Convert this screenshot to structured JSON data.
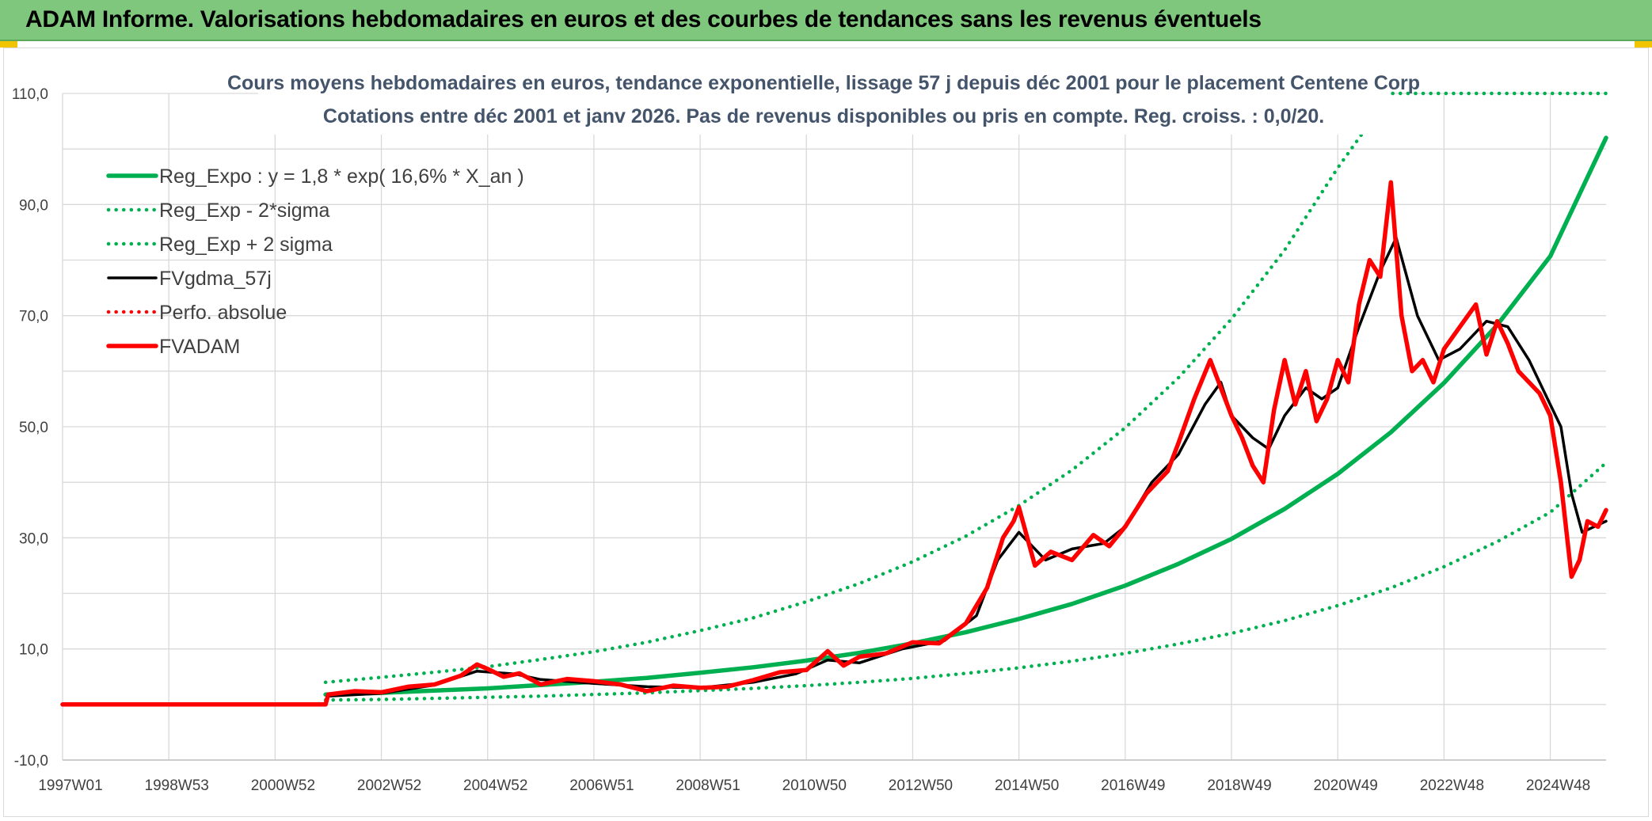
{
  "banner": {
    "title": "ADAM Informe. Valorisations hebdomadaires en euros et des courbes de tendances sans les revenus éventuels"
  },
  "colors": {
    "banner_bg": "#7fc77d",
    "green": "#00b050",
    "red": "#ff0000",
    "black": "#000000",
    "grid": "#d9d9d9"
  },
  "chart_data": {
    "type": "line",
    "title": "Cours moyens hebdomadaires en euros, tendance exponentielle, lissage 57 j depuis déc 2001 pour le placement Centene Corp",
    "subtitle": "Cotations entre déc 2001 et janv 2026. Pas de revenus disponibles ou pris en compte. Reg. croiss. : 0,0/20.",
    "xlabel": "",
    "ylabel": "",
    "x_range": [
      1997.0,
      2026.05
    ],
    "ylim": [
      -10,
      110
    ],
    "y_ticks": [
      -10,
      10,
      30,
      50,
      70,
      90,
      110
    ],
    "y_tick_labels": [
      "-10,0",
      "10,0",
      "30,0",
      "50,0",
      "70,0",
      "90,0",
      "110,0"
    ],
    "x_tick_positions": [
      1997.0,
      1999.0,
      2001.0,
      2003.0,
      2005.0,
      2007.0,
      2009.0,
      2011.0,
      2013.0,
      2015.0,
      2017.0,
      2019.0,
      2021.0,
      2023.0,
      2025.0
    ],
    "x_tick_labels": [
      "1997W01",
      "1998W53",
      "2000W52",
      "2002W52",
      "2004W52",
      "2006W51",
      "2008W51",
      "2010W50",
      "2012W50",
      "2014W50",
      "2016W49",
      "2018W49",
      "2020W49",
      "2022W48",
      "2024W48"
    ],
    "grid": true,
    "legend_position": "top-left",
    "series": [
      {
        "name": "Reg_Expo : y = 1,8 * exp( 16,6% *  X_an )",
        "style": "solid-thick",
        "color": "#00b050",
        "x": [
          2001.95,
          2003,
          2004,
          2005,
          2006,
          2007,
          2008,
          2009,
          2010,
          2011,
          2012,
          2013,
          2014,
          2015,
          2016,
          2017,
          2018,
          2019,
          2020,
          2021,
          2022,
          2023,
          2024,
          2025,
          2026.05
        ],
        "y": [
          1.8,
          2.1,
          2.5,
          2.9,
          3.5,
          4.1,
          4.8,
          5.7,
          6.7,
          7.9,
          9.3,
          11.0,
          13.0,
          15.4,
          18.1,
          21.4,
          25.3,
          29.8,
          35.2,
          41.5,
          49.0,
          57.9,
          68.3,
          80.7,
          102.0
        ]
      },
      {
        "name": "Reg_Exp - 2*sigma",
        "style": "dotted",
        "color": "#00b050",
        "x": [
          2001.95,
          2003,
          2004,
          2005,
          2006,
          2007,
          2008,
          2009,
          2010,
          2011,
          2012,
          2013,
          2014,
          2015,
          2016,
          2017,
          2018,
          2019,
          2020,
          2021,
          2022,
          2023,
          2024,
          2025,
          2026.05
        ],
        "y": [
          0.8,
          0.9,
          1.1,
          1.3,
          1.5,
          1.8,
          2.1,
          2.5,
          2.9,
          3.4,
          4.0,
          4.7,
          5.6,
          6.6,
          7.8,
          9.2,
          10.9,
          12.8,
          15.1,
          17.8,
          21.0,
          24.8,
          29.3,
          34.6,
          43.5
        ]
      },
      {
        "name": "Reg_Exp + 2 sigma",
        "style": "dotted",
        "color": "#00b050",
        "x": [
          2001.95,
          2003,
          2004,
          2005,
          2006,
          2007,
          2008,
          2009,
          2010,
          2011,
          2012,
          2013,
          2014,
          2015,
          2016,
          2017,
          2018,
          2019,
          2020,
          2021,
          2022,
          2023,
          2024,
          2025,
          2026.05
        ],
        "y": [
          4.0,
          4.9,
          5.8,
          6.8,
          8.1,
          9.5,
          11.2,
          13.3,
          15.6,
          18.5,
          21.8,
          25.7,
          30.3,
          35.8,
          42.2,
          49.8,
          58.8,
          69.4,
          81.8,
          96.6,
          110,
          110,
          110,
          110,
          110
        ]
      },
      {
        "name": "FVgdma_57j",
        "style": "solid",
        "color": "#000000",
        "x": [
          1997.0,
          2001.95,
          2002.0,
          2003,
          2004,
          2004.8,
          2005.5,
          2006,
          2007,
          2008,
          2009,
          2010,
          2010.8,
          2011.4,
          2012,
          2012.8,
          2013.6,
          2014.2,
          2014.6,
          2015.0,
          2015.5,
          2016.0,
          2016.6,
          2017.0,
          2017.5,
          2018.0,
          2018.5,
          2018.8,
          2019.0,
          2019.4,
          2019.7,
          2020.0,
          2020.4,
          2020.7,
          2021.0,
          2021.4,
          2021.8,
          2022.1,
          2022.5,
          2022.9,
          2023.3,
          2023.8,
          2024.2,
          2024.6,
          2024.9,
          2025.2,
          2025.4,
          2025.6,
          2026.05
        ],
        "y": [
          0,
          0,
          1.5,
          2.0,
          3.5,
          6.0,
          5.5,
          4.5,
          3.8,
          3.2,
          3.0,
          4.0,
          5.5,
          8.0,
          7.5,
          10.0,
          11.5,
          16.0,
          26.0,
          31.0,
          26.0,
          28.0,
          29.0,
          32.0,
          40.0,
          45.0,
          54.0,
          58.0,
          52.0,
          48.0,
          46.0,
          52.0,
          57.0,
          55.0,
          57.0,
          68.0,
          78.0,
          84.0,
          70.0,
          62.0,
          64.0,
          69.0,
          68.0,
          62.0,
          56.0,
          50.0,
          38.0,
          31.0,
          33.0
        ]
      },
      {
        "name": "Perfo. absolue",
        "style": "dotted",
        "color": "#ff0000",
        "x": [],
        "y": []
      },
      {
        "name": "FVADAM",
        "style": "solid-thick",
        "color": "#ff0000",
        "x": [
          1997.0,
          2001.95,
          2002.0,
          2002.5,
          2003,
          2003.5,
          2004,
          2004.5,
          2004.8,
          2005.0,
          2005.3,
          2005.6,
          2006,
          2006.5,
          2007,
          2007.5,
          2008,
          2008.5,
          2009,
          2009.5,
          2010,
          2010.5,
          2011.0,
          2011.4,
          2011.7,
          2012.0,
          2012.5,
          2013.0,
          2013.5,
          2014.0,
          2014.4,
          2014.7,
          2014.9,
          2015.0,
          2015.3,
          2015.6,
          2016.0,
          2016.4,
          2016.7,
          2017.0,
          2017.4,
          2017.8,
          2018.0,
          2018.3,
          2018.6,
          2018.8,
          2019.0,
          2019.2,
          2019.4,
          2019.6,
          2019.8,
          2020.0,
          2020.2,
          2020.4,
          2020.6,
          2020.8,
          2021.0,
          2021.2,
          2021.4,
          2021.6,
          2021.8,
          2022.0,
          2022.2,
          2022.4,
          2022.6,
          2022.8,
          2023.0,
          2023.3,
          2023.6,
          2023.8,
          2024.0,
          2024.2,
          2024.4,
          2024.6,
          2024.8,
          2025.0,
          2025.2,
          2025.4,
          2025.55,
          2025.7,
          2025.9,
          2026.05
        ],
        "y": [
          0,
          0,
          1.8,
          2.4,
          2.2,
          3.2,
          3.6,
          5.2,
          7.2,
          6.4,
          5.0,
          5.6,
          3.6,
          4.6,
          4.2,
          3.6,
          2.4,
          3.4,
          3.0,
          3.2,
          4.4,
          5.8,
          6.2,
          9.6,
          7.0,
          8.6,
          9.2,
          11.2,
          11.0,
          14.6,
          21.0,
          30.0,
          33.0,
          35.5,
          25.0,
          27.5,
          26.0,
          30.5,
          28.5,
          32.0,
          38.0,
          42.0,
          47.0,
          55.0,
          62.0,
          57.0,
          52.0,
          48.0,
          43.0,
          40.0,
          53.0,
          62.0,
          54.0,
          60.0,
          51.0,
          55.0,
          62.0,
          58.0,
          72.0,
          80.0,
          77.0,
          94.0,
          70.0,
          60.0,
          62.0,
          58.0,
          64.0,
          68.0,
          72.0,
          63.0,
          69.0,
          65.0,
          60.0,
          58.0,
          56.0,
          52.0,
          40.0,
          23.0,
          26.0,
          33.0,
          32.0,
          35.0
        ]
      }
    ]
  }
}
